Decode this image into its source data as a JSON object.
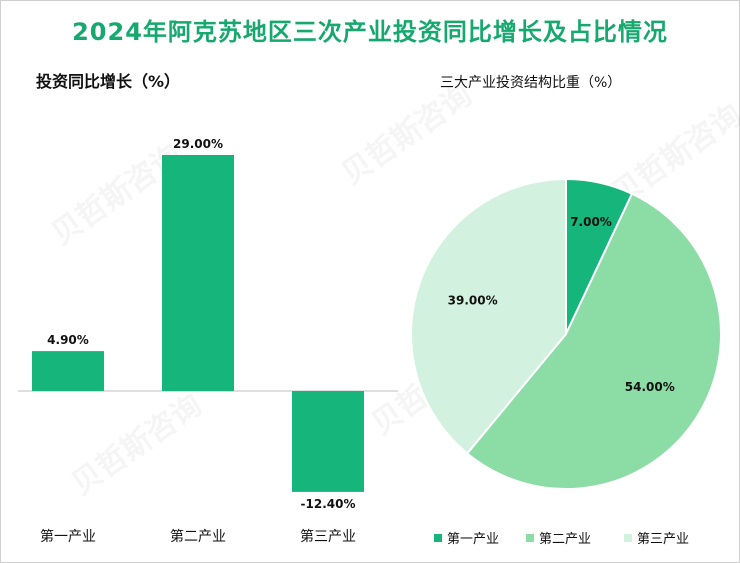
{
  "title": "2024年阿克苏地区三次产业投资同比增长及占比情况",
  "watermark": "贝哲斯咨询",
  "colors": {
    "title": "#16a86e",
    "bar": "#15b57c",
    "pie": [
      "#15b57c",
      "#8cdca6",
      "#d2f1df"
    ],
    "axis": "#bfbfbf"
  },
  "chart_data": [
    {
      "type": "bar",
      "title": "投资同比增长（%）",
      "categories": [
        "第一产业",
        "第二产业",
        "第三产业"
      ],
      "values": [
        4.9,
        29.0,
        -12.4
      ],
      "value_labels": [
        "4.90%",
        "29.00%",
        "-12.40%"
      ],
      "ylim": [
        -15,
        35
      ],
      "grid": false
    },
    {
      "type": "pie",
      "title": "三大产业投资结构比重（%）",
      "categories": [
        "第一产业",
        "第二产业",
        "第三产业"
      ],
      "values": [
        7.0,
        54.0,
        39.0
      ],
      "value_labels": [
        "7.00%",
        "54.00%",
        "39.00%"
      ],
      "legend_position": "bottom"
    }
  ]
}
